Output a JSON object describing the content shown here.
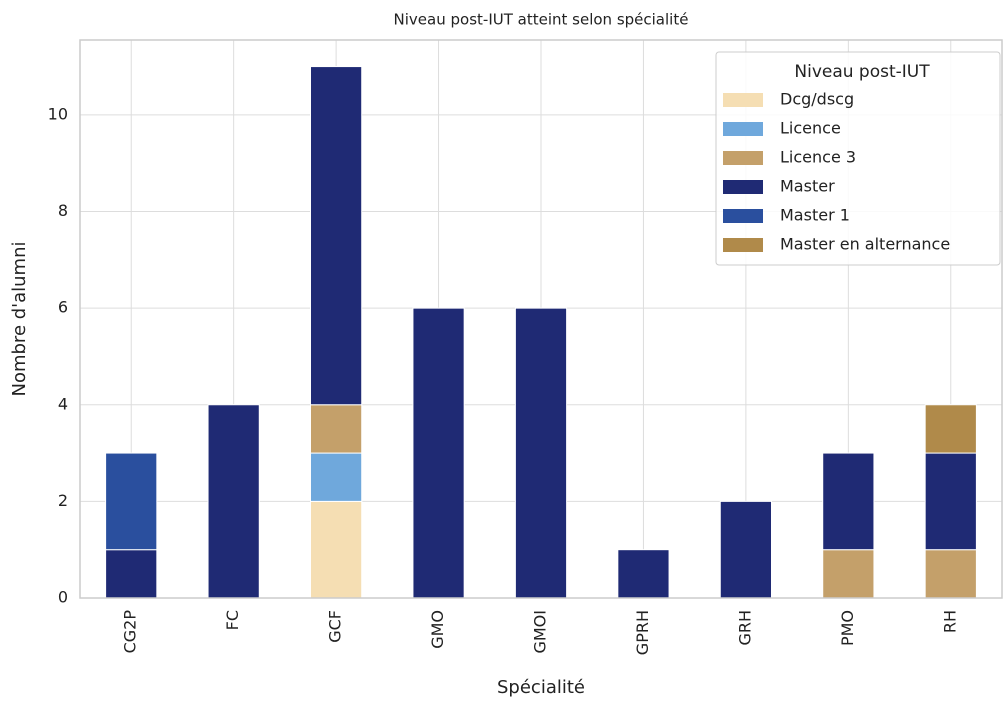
{
  "chart_data": {
    "type": "stacked_bar",
    "title": "Niveau post-IUT atteint selon spécialité",
    "x_label": "Spécialité",
    "y_label": "Nombre d'alumni",
    "legend_title": "Niveau post-IUT",
    "categories": [
      "CG2P",
      "FC",
      "GCF",
      "GMO",
      "GMOI",
      "GPRH",
      "GRH",
      "PMO",
      "RH"
    ],
    "series": [
      {
        "name": "Dcg/dscg",
        "color": "#f5deb3",
        "values": [
          0,
          0,
          2,
          0,
          0,
          0,
          0,
          0,
          0
        ]
      },
      {
        "name": "Licence",
        "color": "#6fa8dc",
        "values": [
          0,
          0,
          1,
          0,
          0,
          0,
          0,
          0,
          0
        ]
      },
      {
        "name": "Licence 3",
        "color": "#c4a06a",
        "values": [
          0,
          0,
          1,
          0,
          0,
          0,
          0,
          1,
          1
        ]
      },
      {
        "name": "Master",
        "color": "#1f2a74",
        "values": [
          1,
          4,
          7,
          6,
          6,
          1,
          2,
          2,
          2
        ]
      },
      {
        "name": "Master 1",
        "color": "#2a4f9e",
        "values": [
          2,
          0,
          0,
          0,
          0,
          0,
          0,
          0,
          0
        ]
      },
      {
        "name": "Master en alternance",
        "color": "#b08a4a",
        "values": [
          0,
          0,
          0,
          0,
          0,
          0,
          0,
          0,
          1
        ]
      }
    ],
    "ylim": [
      0,
      11.55
    ],
    "yticks": [
      0,
      2,
      4,
      6,
      8,
      10
    ],
    "grid": true,
    "legend_position": "upper right"
  }
}
